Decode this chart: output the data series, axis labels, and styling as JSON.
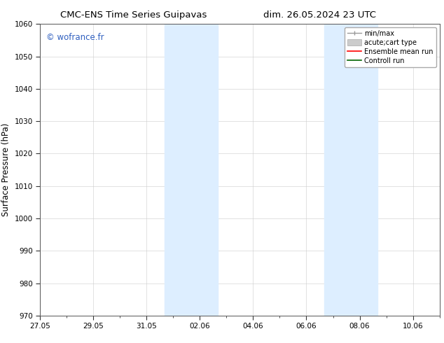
{
  "title_left": "CMC-ENS Time Series Guipavas",
  "title_right": "dim. 26.05.2024 23 UTC",
  "ylabel": "Surface Pressure (hPa)",
  "ylim": [
    970,
    1060
  ],
  "yticks": [
    970,
    980,
    990,
    1000,
    1010,
    1020,
    1030,
    1040,
    1050,
    1060
  ],
  "xtick_labels": [
    "27.05",
    "29.05",
    "31.05",
    "02.06",
    "04.06",
    "06.06",
    "08.06",
    "10.06"
  ],
  "xtick_positions": [
    0,
    2,
    4,
    6,
    8,
    10,
    12,
    14
  ],
  "xlim": [
    0,
    15
  ],
  "shaded_bands": [
    {
      "x_start": 4.67,
      "x_end": 6.67
    },
    {
      "x_start": 10.67,
      "x_end": 12.67
    }
  ],
  "shaded_color": "#ddeeff",
  "watermark": "© wofrance.fr",
  "watermark_color": "#3060c0",
  "legend_entries": [
    {
      "label": "min/max",
      "color": "#999999",
      "lw": 1.0
    },
    {
      "label": "acute;cart type",
      "color": "#cccccc",
      "lw": 5
    },
    {
      "label": "Ensemble mean run",
      "color": "#ff0000",
      "lw": 1.2
    },
    {
      "label": "Controll run",
      "color": "#006400",
      "lw": 1.2
    }
  ],
  "bg_color": "#ffffff",
  "grid_color": "#cccccc",
  "spine_color": "#555555",
  "tick_color": "#333333",
  "title_fontsize": 9.5,
  "ylabel_fontsize": 8.5,
  "tick_fontsize": 7.5,
  "legend_fontsize": 7.0,
  "watermark_fontsize": 8.5
}
